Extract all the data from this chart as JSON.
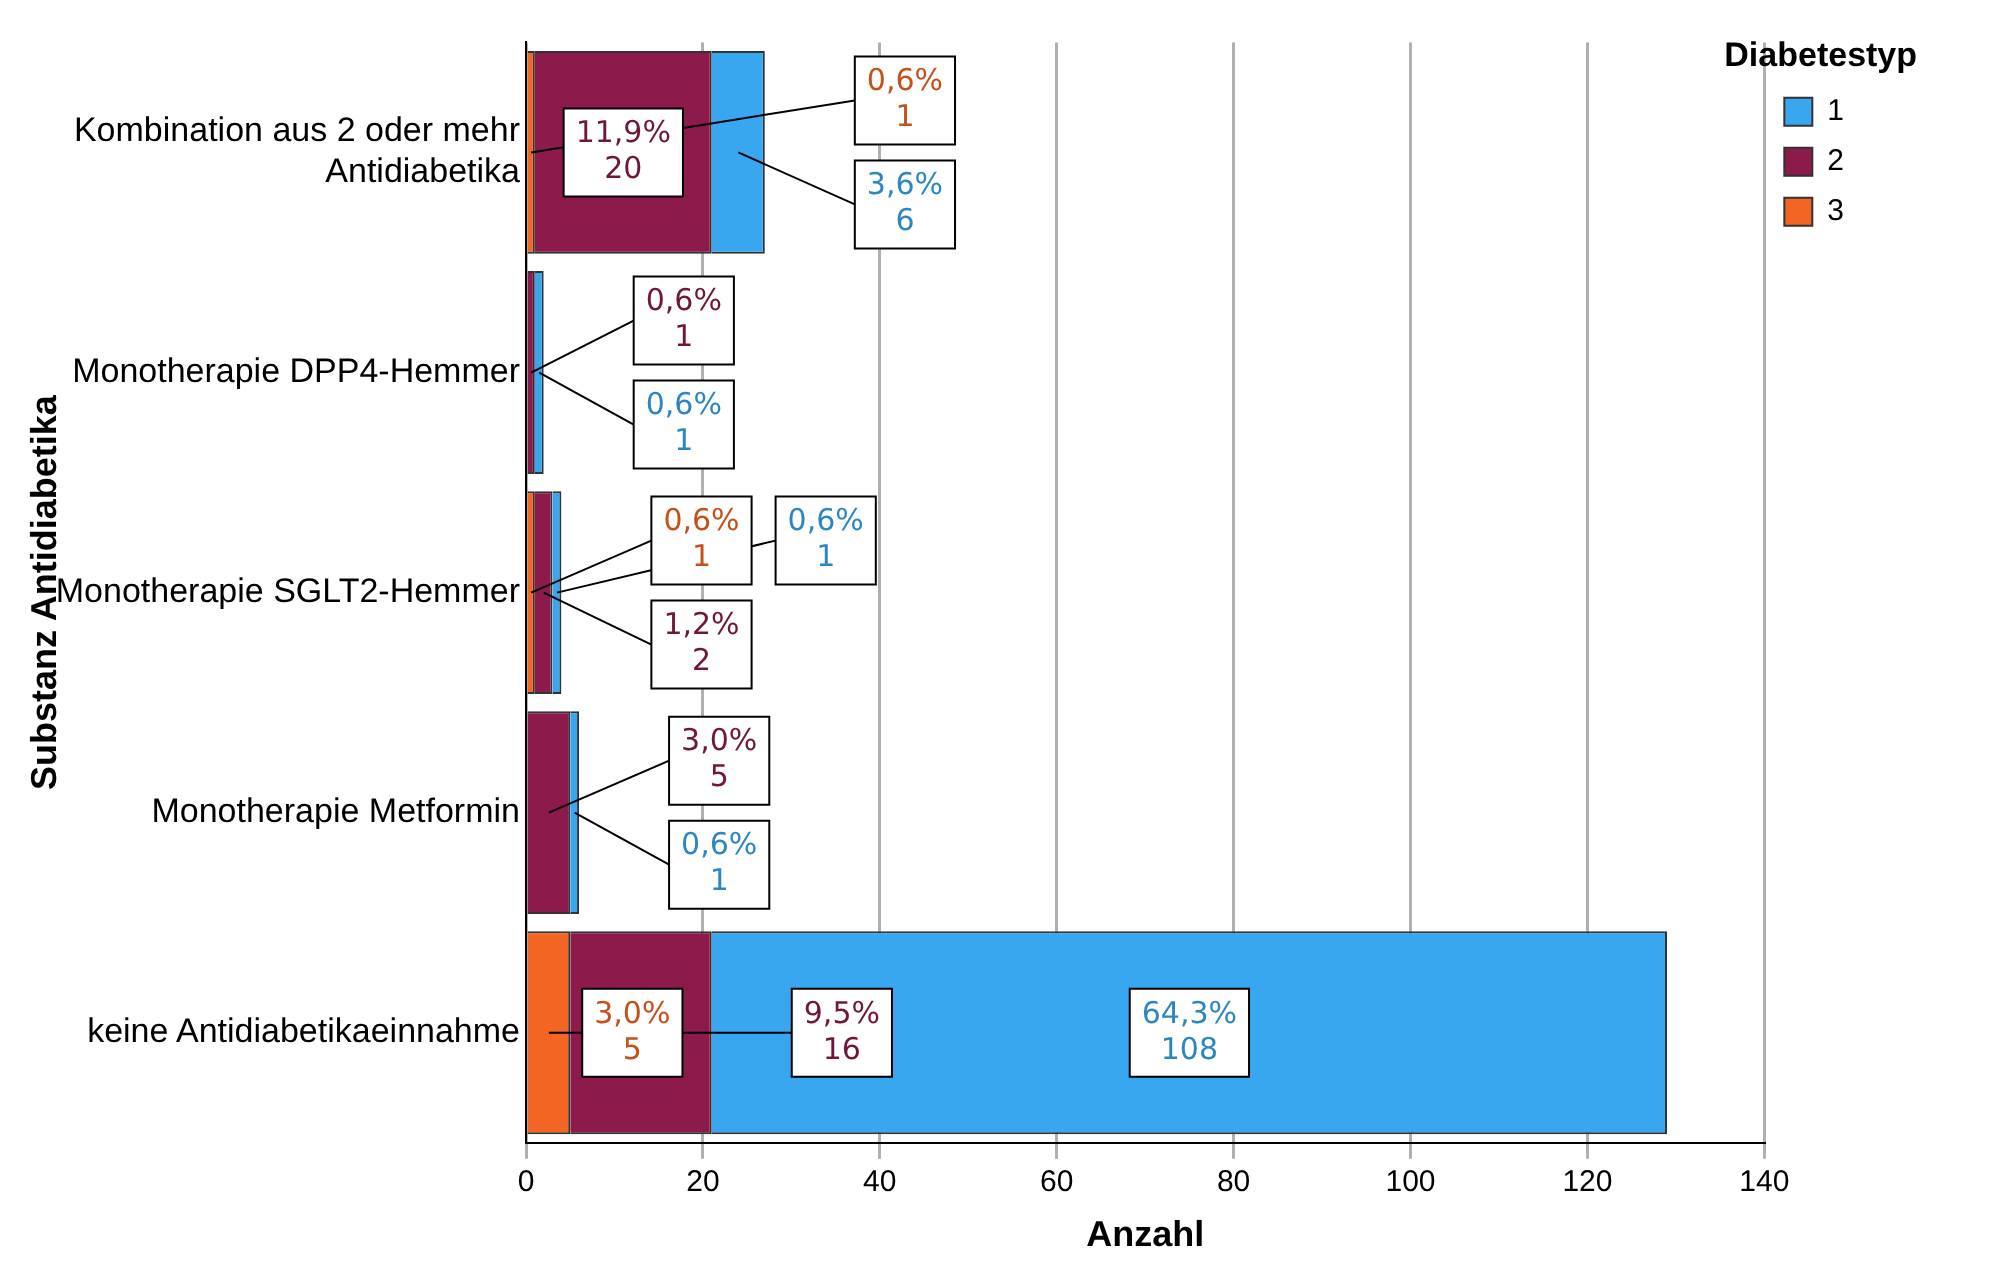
{
  "chart_data": {
    "type": "bar",
    "orientation": "horizontal",
    "stacked": true,
    "categories": [
      "Kombination aus 2 oder mehr Antidiabetika",
      "Monotherapie DPP4-Hemmer",
      "Monotherapie SGLT2-Hemmer",
      "Monotherapie Metformin",
      "keine Antidiabetikaeinnahme"
    ],
    "series": [
      {
        "name": "3",
        "color": "#f26522",
        "values": [
          1,
          null,
          1,
          null,
          5
        ],
        "value_labels": [
          "0,6%\n1",
          null,
          "0,6%\n1",
          null,
          "3,0%\n5"
        ]
      },
      {
        "name": "2",
        "color": "#8c1a4b",
        "values": [
          20,
          1,
          2,
          5,
          16
        ],
        "value_labels": [
          "11,9%\n20",
          "0,6%\n1",
          "1,2%\n2",
          "3,0%\n5",
          "9,5%\n16"
        ]
      },
      {
        "name": "1",
        "color": "#39a7f0",
        "values": [
          6,
          1,
          1,
          1,
          108
        ],
        "value_labels": [
          "3,6%\n6",
          "0,6%\n1",
          "0,6%\n1",
          "0,6%\n1",
          "64,3%\n108"
        ]
      }
    ],
    "xlim": [
      0,
      140
    ],
    "xticks": [
      0,
      20,
      40,
      60,
      80,
      100,
      120,
      140
    ],
    "xlabel": "Anzahl",
    "ylabel": "Substanz Antidiabetika",
    "legend_title": "Diabetestyp",
    "legend": "top right",
    "grid": "x"
  }
}
